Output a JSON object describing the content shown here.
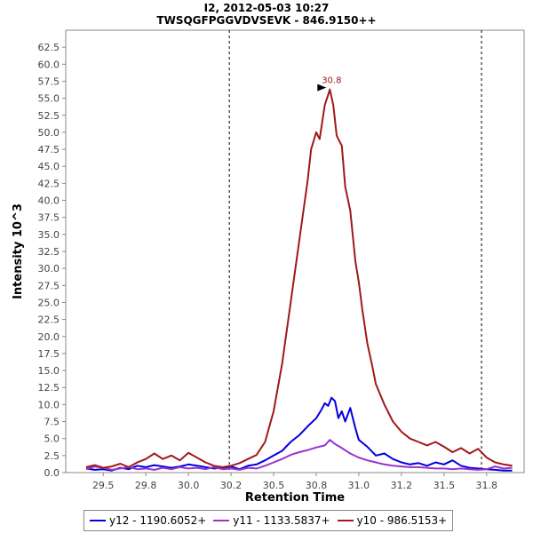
{
  "chart_data": {
    "type": "line",
    "title": "I2, 2012-05-03 10:27",
    "subtitle": "TWSQGFPGGVDVSEVK - 846.9150++",
    "xlabel": "Retention Time",
    "ylabel": "Intensity 10^3",
    "xlim": [
      29.28,
      31.97
    ],
    "ylim": [
      0,
      65.0
    ],
    "x_ticks": [
      "29.5",
      "29.8",
      "30.0",
      "30.2",
      "30.5",
      "30.8",
      "31.0",
      "31.2",
      "31.5",
      "31.8"
    ],
    "x_tick_values": [
      29.5,
      29.75,
      30.0,
      30.25,
      30.5,
      30.75,
      31.0,
      31.25,
      31.5,
      31.75
    ],
    "y_ticks": [
      "0.0",
      "2.5",
      "5.0",
      "7.5",
      "10.0",
      "12.5",
      "15.0",
      "17.5",
      "20.0",
      "22.5",
      "25.0",
      "27.5",
      "30.0",
      "32.5",
      "35.0",
      "37.5",
      "40.0",
      "42.5",
      "45.0",
      "47.5",
      "50.0",
      "52.5",
      "55.0",
      "57.5",
      "60.0",
      "62.5"
    ],
    "integration_bounds": [
      30.24,
      31.72
    ],
    "peak_annotation": {
      "x": 30.83,
      "y": 56.3,
      "label": "30.8"
    },
    "series": [
      {
        "name": "y12 - 1190.6052+",
        "color": "#0000e0",
        "x": [
          29.4,
          29.45,
          29.5,
          29.55,
          29.6,
          29.65,
          29.7,
          29.75,
          29.8,
          29.85,
          29.9,
          29.95,
          30.0,
          30.05,
          30.1,
          30.15,
          30.2,
          30.25,
          30.3,
          30.35,
          30.4,
          30.45,
          30.5,
          30.55,
          30.6,
          30.65,
          30.7,
          30.75,
          30.78,
          30.8,
          30.82,
          30.84,
          30.86,
          30.88,
          30.9,
          30.92,
          30.95,
          30.98,
          31.0,
          31.05,
          31.1,
          31.15,
          31.2,
          31.25,
          31.3,
          31.35,
          31.4,
          31.45,
          31.5,
          31.55,
          31.6,
          31.65,
          31.7,
          31.75,
          31.8,
          31.85,
          31.9
        ],
        "values": [
          0.6,
          0.4,
          0.5,
          0.3,
          0.7,
          0.5,
          1.0,
          0.8,
          1.1,
          0.9,
          0.7,
          0.9,
          1.2,
          1.0,
          0.8,
          0.6,
          0.7,
          0.9,
          0.5,
          1.0,
          1.2,
          1.8,
          2.5,
          3.2,
          4.5,
          5.5,
          6.8,
          8.0,
          9.2,
          10.2,
          9.8,
          11.0,
          10.5,
          8.0,
          9.0,
          7.5,
          9.5,
          6.5,
          4.8,
          3.8,
          2.5,
          2.8,
          2.0,
          1.5,
          1.2,
          1.4,
          1.0,
          1.5,
          1.2,
          1.8,
          1.0,
          0.7,
          0.6,
          0.5,
          0.4,
          0.3,
          0.3
        ]
      },
      {
        "name": "y11 - 1133.5837+",
        "color": "#9933cc",
        "x": [
          29.4,
          29.45,
          29.5,
          29.55,
          29.6,
          29.65,
          29.7,
          29.75,
          29.8,
          29.85,
          29.9,
          29.95,
          30.0,
          30.05,
          30.1,
          30.15,
          30.2,
          30.25,
          30.3,
          30.35,
          30.4,
          30.45,
          30.5,
          30.55,
          30.6,
          30.65,
          30.7,
          30.75,
          30.8,
          30.83,
          30.86,
          30.9,
          30.95,
          31.0,
          31.05,
          31.1,
          31.15,
          31.2,
          31.25,
          31.3,
          31.35,
          31.4,
          31.45,
          31.5,
          31.55,
          31.6,
          31.65,
          31.7,
          31.75,
          31.8,
          31.85,
          31.9
        ],
        "values": [
          0.5,
          0.9,
          0.7,
          0.4,
          0.6,
          0.8,
          0.5,
          0.6,
          0.4,
          0.7,
          0.5,
          0.8,
          0.6,
          0.7,
          0.5,
          0.8,
          0.5,
          0.6,
          0.4,
          0.7,
          0.6,
          1.0,
          1.5,
          2.0,
          2.6,
          3.0,
          3.3,
          3.7,
          4.0,
          4.8,
          4.2,
          3.6,
          2.8,
          2.2,
          1.8,
          1.5,
          1.2,
          1.0,
          0.9,
          0.8,
          0.8,
          0.7,
          0.6,
          0.6,
          0.5,
          0.6,
          0.5,
          0.4,
          0.5,
          0.9,
          0.6,
          0.7
        ]
      },
      {
        "name": "y10 - 986.5153+",
        "color": "#a01818",
        "x": [
          29.4,
          29.45,
          29.5,
          29.55,
          29.6,
          29.65,
          29.7,
          29.75,
          29.8,
          29.85,
          29.9,
          29.95,
          30.0,
          30.05,
          30.1,
          30.15,
          30.2,
          30.25,
          30.3,
          30.35,
          30.4,
          30.45,
          30.5,
          30.55,
          30.6,
          30.65,
          30.7,
          30.72,
          30.75,
          30.77,
          30.8,
          30.82,
          30.83,
          30.85,
          30.87,
          30.9,
          30.92,
          30.95,
          30.98,
          31.0,
          31.02,
          31.05,
          31.08,
          31.1,
          31.15,
          31.2,
          31.25,
          31.3,
          31.35,
          31.4,
          31.45,
          31.5,
          31.55,
          31.6,
          31.65,
          31.7,
          31.75,
          31.8,
          31.85,
          31.9
        ],
        "values": [
          0.8,
          1.1,
          0.7,
          0.9,
          1.3,
          0.8,
          1.5,
          2.0,
          2.8,
          2.0,
          2.5,
          1.8,
          2.9,
          2.2,
          1.5,
          1.0,
          0.8,
          1.0,
          1.4,
          2.0,
          2.6,
          4.5,
          9.0,
          16.0,
          25.0,
          34.0,
          43.0,
          47.5,
          50.0,
          49.0,
          54.0,
          55.5,
          56.3,
          54.0,
          49.5,
          48.0,
          42.0,
          38.5,
          31.0,
          28.0,
          24.0,
          19.0,
          15.5,
          13.0,
          10.0,
          7.5,
          6.0,
          5.0,
          4.5,
          4.0,
          4.5,
          3.8,
          3.0,
          3.6,
          2.8,
          3.5,
          2.2,
          1.5,
          1.2,
          1.0
        ]
      }
    ],
    "legend_position": "bottom"
  }
}
